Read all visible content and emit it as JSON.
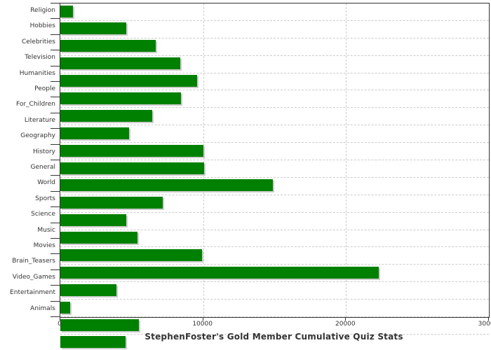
{
  "chart_data": {
    "type": "bar",
    "orientation": "horizontal",
    "title": "StephenFoster's Gold Member Cumulative Quiz Stats",
    "categories": [
      "Religion",
      "Hobbies",
      "Celebrities",
      "Television",
      "Humanities",
      "People",
      "For_Children",
      "Literature",
      "Geography",
      "History",
      "General",
      "World",
      "Sports",
      "Science",
      "Music",
      "Movies",
      "Brain_Teasers",
      "Video_Games",
      "Entertainment",
      "Animals"
    ],
    "values": [
      900,
      4600,
      6700,
      8400,
      9550,
      8450,
      6450,
      4800,
      10000,
      10050,
      14900,
      7150,
      4600,
      5400,
      9900,
      22300,
      3950,
      700,
      5500,
      4550
    ],
    "xlabel": "",
    "ylabel": "",
    "xlim": [
      0,
      30000
    ],
    "xticks": [
      0,
      10000,
      20000,
      30000
    ],
    "xtick_labels": [
      "0",
      "10000",
      "20000",
      "30000"
    ],
    "legend": "none",
    "grid": "dashed",
    "bar_color": "#008000",
    "bar_shadow_color": "#cccccc",
    "grid_color": "#cccccc",
    "axis_color": "#333333",
    "text_color": "#333333",
    "background_color": "#ffffff"
  }
}
